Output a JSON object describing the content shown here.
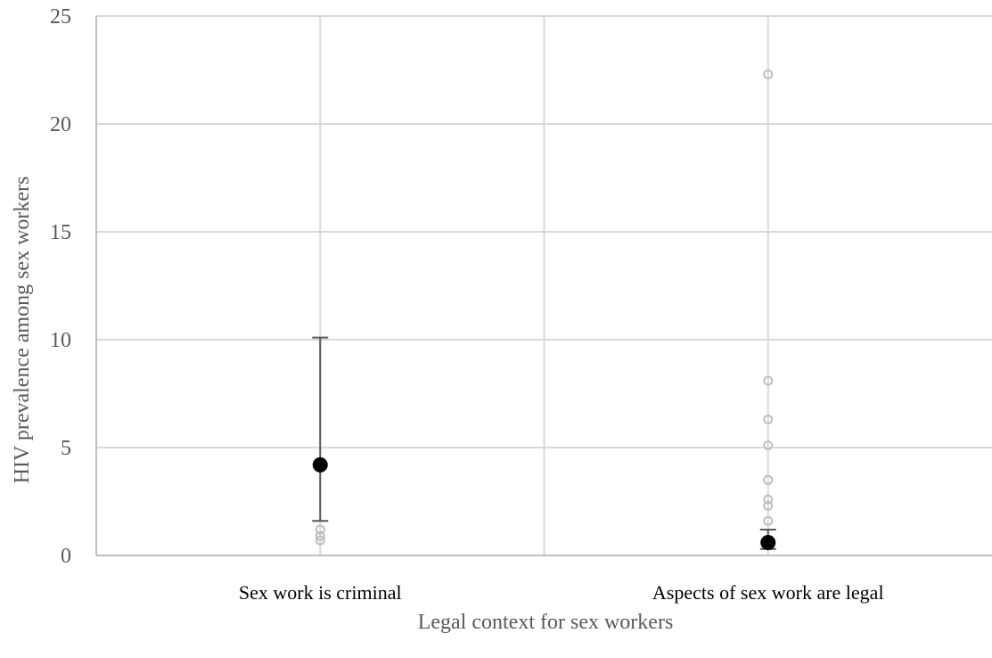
{
  "chart_data": {
    "type": "scatter",
    "xlabel": "Legal context for sex workers",
    "ylabel": "HIV prevalence among sex workers",
    "ylim": [
      0,
      25
    ],
    "yticks": [
      0,
      5,
      10,
      15,
      20,
      25
    ],
    "grid": true,
    "categories": [
      "Sex work is criminal",
      "Aspects of sex work are legal"
    ],
    "colors": {
      "point": "#bfbfbf",
      "mean": "#000000",
      "error": "#595959"
    },
    "series": [
      {
        "category": "Sex work is criminal",
        "points": [
          0.7,
          0.9,
          1.2
        ],
        "mean": 4.2,
        "error_low": 1.6,
        "error_high": 10.1
      },
      {
        "category": "Aspects of sex work are legal",
        "points": [
          22.3,
          8.1,
          6.3,
          5.1,
          3.5,
          2.6,
          2.3,
          1.6,
          0.6
        ],
        "mean": 0.6,
        "error_low": 0.3,
        "error_high": 1.2
      }
    ]
  }
}
